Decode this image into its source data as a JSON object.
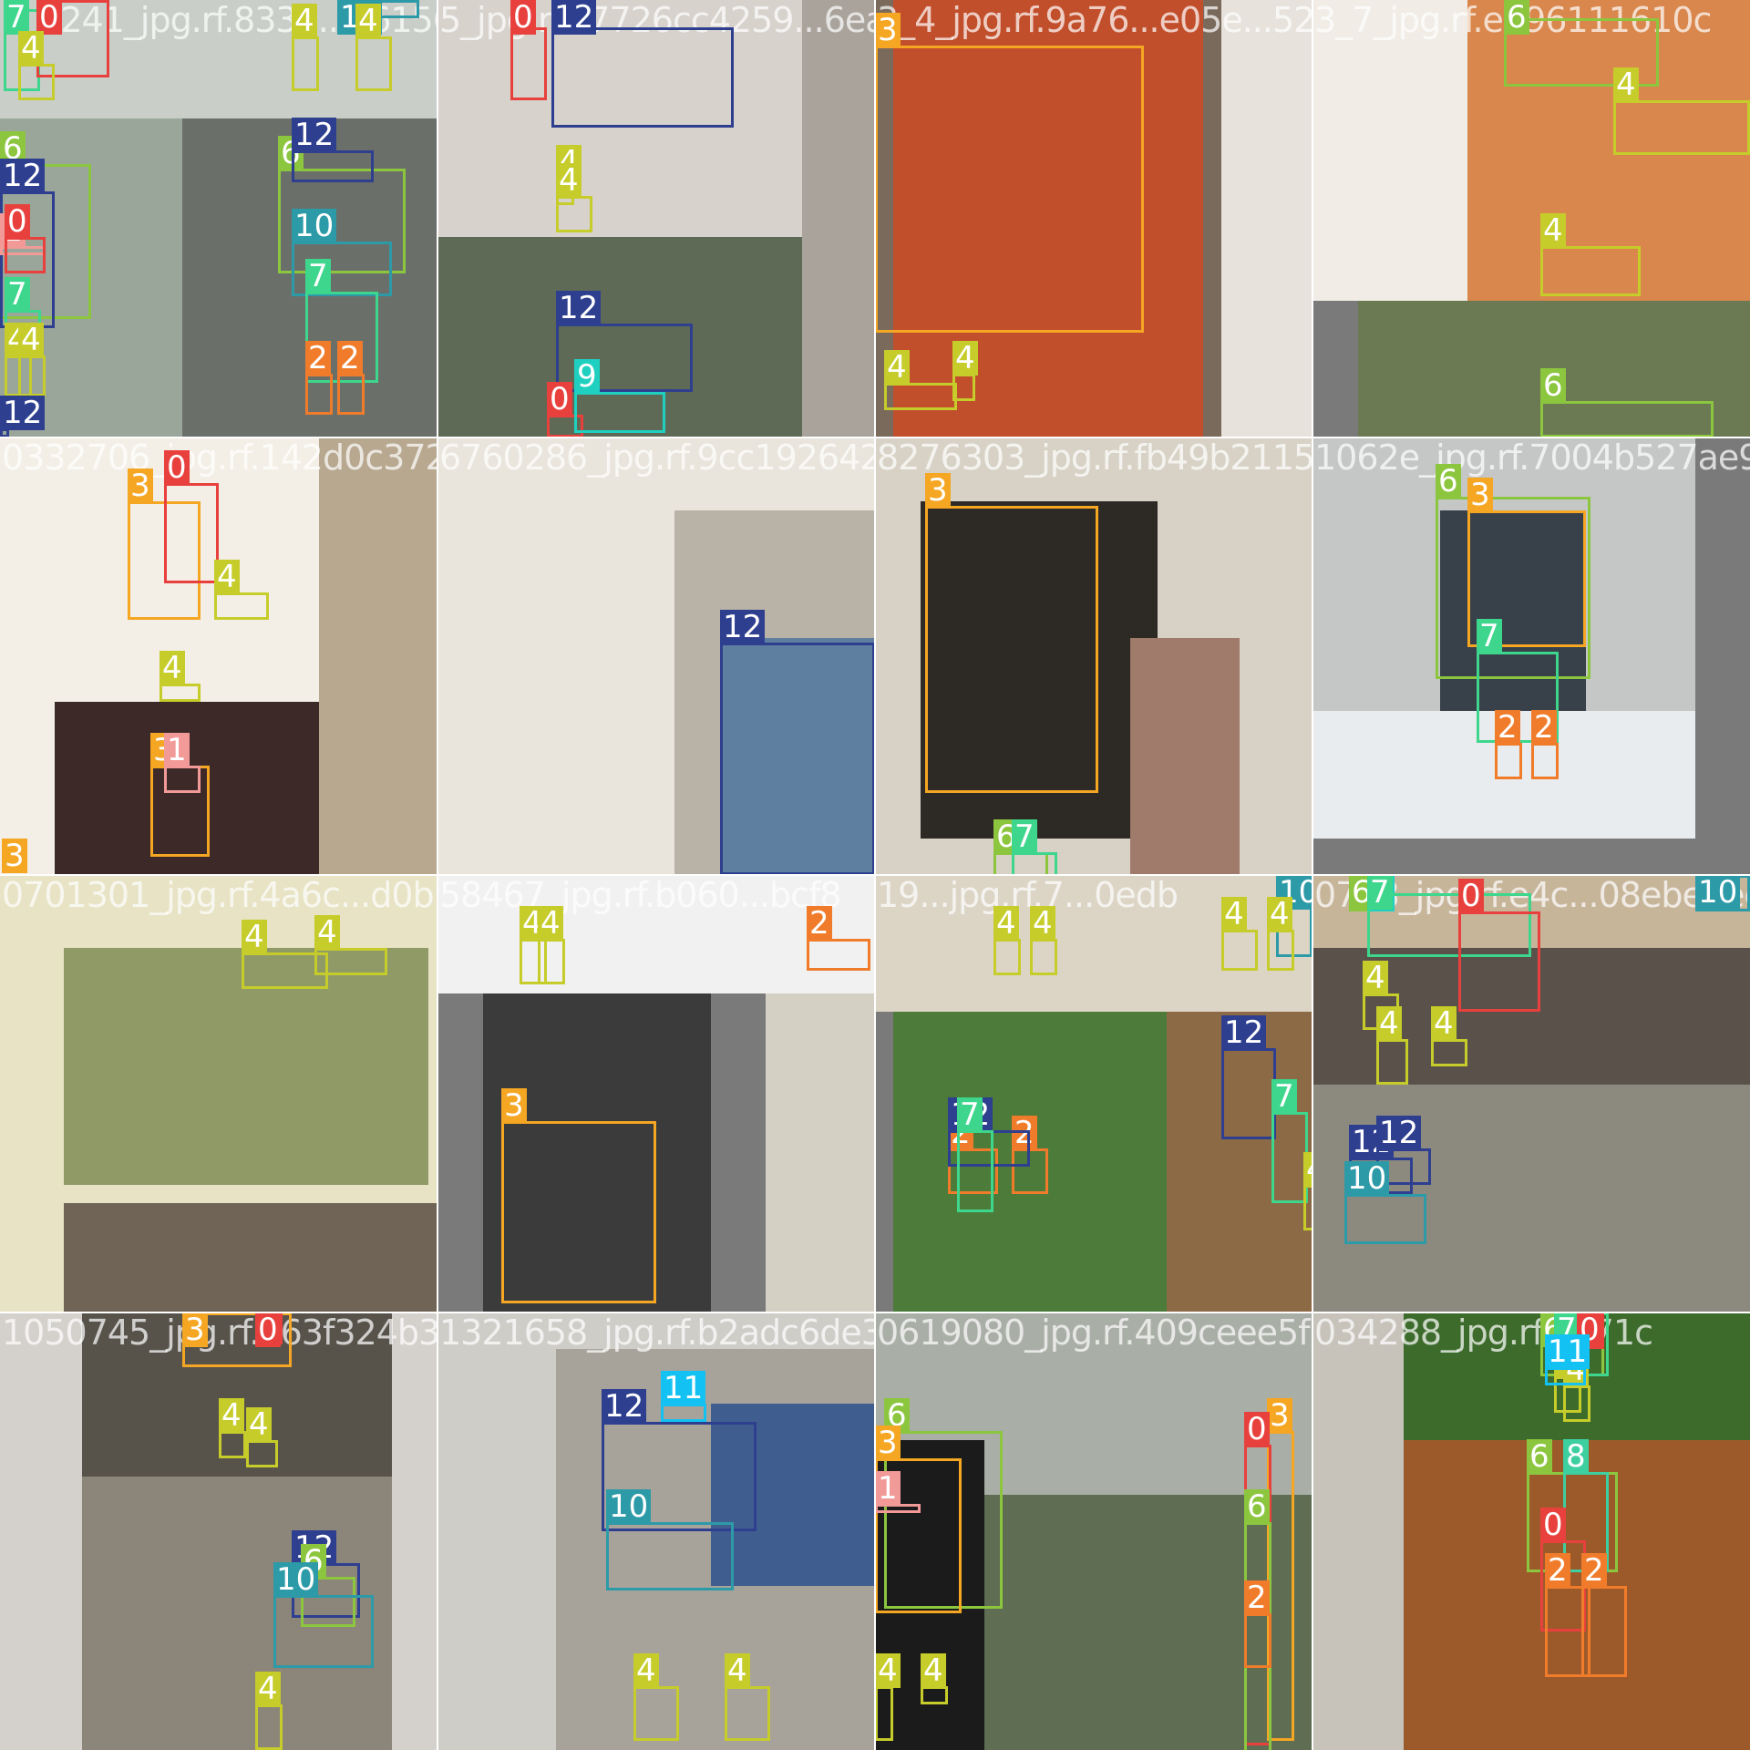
{
  "tiles": [
    {
      "id": "t00",
      "filename": "7_1241_jpg.rf.8332...1615653a",
      "backgrounds": [
        "#c9cfc8",
        "#9aa69a",
        "#6b6f6a"
      ]
    },
    {
      "id": "t01",
      "filename": "5_jpg.rf.c7726cc4259...6ea",
      "backgrounds": [
        "#d7d2cc",
        "#a9a39c",
        "#5e6a55"
      ]
    },
    {
      "id": "t02",
      "filename": "3_4_jpg.rf.9a76...e05e...52763a9c3f7",
      "backgrounds": [
        "#e7e3dc",
        "#c24f2c",
        "#7a6a5c"
      ]
    },
    {
      "id": "t03",
      "filename": "3_7_jpg.rf.e396111610c",
      "backgrounds": [
        "#f1ede6",
        "#d9874c",
        "#6b7a53"
      ]
    },
    {
      "id": "t10",
      "filename": "0332706_jpg.rf.142d0c372d6",
      "backgrounds": [
        "#f3efe7",
        "#b7a88f",
        "#3d2a28"
      ]
    },
    {
      "id": "t11",
      "filename": "6760286_jpg.rf.9cc192642de2",
      "backgrounds": [
        "#e9e4dc",
        "#b9b2a6",
        "#5f7fa0"
      ]
    },
    {
      "id": "t12",
      "filename": "8276303_jpg.rf.fb49b21157c4",
      "backgrounds": [
        "#d8d2c6",
        "#2d2925",
        "#a07a6a"
      ]
    },
    {
      "id": "t13",
      "filename": "1062e_jpg.rf.7004b527ae9",
      "backgrounds": [
        "#c4c7c6",
        "#38404a",
        "#e9ecee"
      ]
    },
    {
      "id": "t20",
      "filename": "0701301_jpg.rf.4a6c...d0b",
      "backgrounds": [
        "#e7e3c4",
        "#8f9a66",
        "#6f6455"
      ]
    },
    {
      "id": "t21",
      "filename": "58467_jpg.rf.b060...bcf8",
      "backgrounds": [
        "#f1f1f1",
        "#3b3b3b",
        "#d5d0c4"
      ]
    },
    {
      "id": "t22",
      "filename": "19...jpg.rf.7...0edb",
      "backgrounds": [
        "#dcd5c6",
        "#4c7b3a",
        "#8b6a45"
      ]
    },
    {
      "id": "t23",
      "filename": "0758_jpg.rf.e4c...08ebe3ee8",
      "backgrounds": [
        "#5a524a",
        "#c7b59a",
        "#8c8a7f"
      ]
    },
    {
      "id": "t30",
      "filename": "1050745_jpg.rf.263f324b3b6",
      "backgrounds": [
        "#d4d1cc",
        "#57534b",
        "#8c8579"
      ]
    },
    {
      "id": "t31",
      "filename": "1321658_jpg.rf.b2adc6de3e",
      "backgrounds": [
        "#cfcdc8",
        "#a7a39a",
        "#3f5d8e"
      ]
    },
    {
      "id": "t32",
      "filename": "0619080_jpg.rf.409ceee5f3b",
      "backgrounds": [
        "#a9aea6",
        "#5f6e52",
        "#1b1b1b"
      ]
    },
    {
      "id": "t33",
      "filename": "034288_jpg.rf.a071c",
      "backgrounds": [
        "#c7c2ba",
        "#9c5a2a",
        "#3d6b2c"
      ]
    }
  ],
  "colors": {
    "0": "#e8413d",
    "1": "#f29a98",
    "2": "#f07c2b",
    "3": "#f5a623",
    "4": "#c6cc2a",
    "6": "#8cc63f",
    "7": "#3dd68c",
    "8": "#3dcfa0",
    "9": "#1fd0c0",
    "10": "#2d9aa8",
    "11": "#13c2f2",
    "12": "#2e3f8f"
  },
  "detections": [
    {
      "tile": "t00",
      "label": "7"
    },
    {
      "tile": "t00",
      "label": "0"
    },
    {
      "tile": "t00",
      "label": "4"
    },
    {
      "tile": "t00",
      "label": "10"
    },
    {
      "tile": "t00",
      "label": "4"
    },
    {
      "tile": "t00",
      "label": "4"
    },
    {
      "tile": "t00",
      "label": "6"
    },
    {
      "tile": "t00",
      "label": "12"
    },
    {
      "tile": "t00",
      "label": "6"
    },
    {
      "tile": "t00",
      "label": "12"
    },
    {
      "tile": "t00",
      "label": "1"
    },
    {
      "tile": "t00",
      "label": "0"
    },
    {
      "tile": "t00",
      "label": "10"
    },
    {
      "tile": "t00",
      "label": "7"
    },
    {
      "tile": "t00",
      "label": "7"
    },
    {
      "tile": "t00",
      "label": "4"
    },
    {
      "tile": "t00",
      "label": "4"
    },
    {
      "tile": "t00",
      "label": "2"
    },
    {
      "tile": "t00",
      "label": "2"
    },
    {
      "tile": "t00",
      "label": "12"
    },
    {
      "tile": "t01",
      "label": "0"
    },
    {
      "tile": "t01",
      "label": "12"
    },
    {
      "tile": "t01",
      "label": "4"
    },
    {
      "tile": "t01",
      "label": "4"
    },
    {
      "tile": "t01",
      "label": "12"
    },
    {
      "tile": "t01",
      "label": "0"
    },
    {
      "tile": "t01",
      "label": "9"
    },
    {
      "tile": "t02",
      "label": "3"
    },
    {
      "tile": "t02",
      "label": "4"
    },
    {
      "tile": "t02",
      "label": "4"
    },
    {
      "tile": "t03",
      "label": "6"
    },
    {
      "tile": "t03",
      "label": "4"
    },
    {
      "tile": "t03",
      "label": "4"
    },
    {
      "tile": "t03",
      "label": "6"
    },
    {
      "tile": "t10",
      "label": "3"
    },
    {
      "tile": "t10",
      "label": "0"
    },
    {
      "tile": "t10",
      "label": "4"
    },
    {
      "tile": "t10",
      "label": "4"
    },
    {
      "tile": "t10",
      "label": "3"
    },
    {
      "tile": "t10",
      "label": "1"
    },
    {
      "tile": "t10",
      "label": "3"
    },
    {
      "tile": "t11",
      "label": "12"
    },
    {
      "tile": "t12",
      "label": "3"
    },
    {
      "tile": "t12",
      "label": "6"
    },
    {
      "tile": "t12",
      "label": "7"
    },
    {
      "tile": "t13",
      "label": "6"
    },
    {
      "tile": "t13",
      "label": "3"
    },
    {
      "tile": "t13",
      "label": "7"
    },
    {
      "tile": "t13",
      "label": "2"
    },
    {
      "tile": "t13",
      "label": "2"
    },
    {
      "tile": "t20",
      "label": "4"
    },
    {
      "tile": "t20",
      "label": "4"
    },
    {
      "tile": "t21",
      "label": "4"
    },
    {
      "tile": "t21",
      "label": "4"
    },
    {
      "tile": "t21",
      "label": "2"
    },
    {
      "tile": "t21",
      "label": "3"
    },
    {
      "tile": "t22",
      "label": "4"
    },
    {
      "tile": "t22",
      "label": "4"
    },
    {
      "tile": "t22",
      "label": "10"
    },
    {
      "tile": "t22",
      "label": "4"
    },
    {
      "tile": "t22",
      "label": "4"
    },
    {
      "tile": "t22",
      "label": "12"
    },
    {
      "tile": "t22",
      "label": "7"
    },
    {
      "tile": "t22",
      "label": "2"
    },
    {
      "tile": "t22",
      "label": "2"
    },
    {
      "tile": "t22",
      "label": "12"
    },
    {
      "tile": "t22",
      "label": "7"
    },
    {
      "tile": "t22",
      "label": "4"
    },
    {
      "tile": "t23",
      "label": "6"
    },
    {
      "tile": "t23",
      "label": "9"
    },
    {
      "tile": "t23",
      "label": "7"
    },
    {
      "tile": "t23",
      "label": "0"
    },
    {
      "tile": "t23",
      "label": "10"
    },
    {
      "tile": "t23",
      "label": "4"
    },
    {
      "tile": "t23",
      "label": "4"
    },
    {
      "tile": "t23",
      "label": "4"
    },
    {
      "tile": "t23",
      "label": "12"
    },
    {
      "tile": "t23",
      "label": "12"
    },
    {
      "tile": "t23",
      "label": "10"
    },
    {
      "tile": "t30",
      "label": "3"
    },
    {
      "tile": "t30",
      "label": "0"
    },
    {
      "tile": "t30",
      "label": "4"
    },
    {
      "tile": "t30",
      "label": "4"
    },
    {
      "tile": "t30",
      "label": "12"
    },
    {
      "tile": "t30",
      "label": "6"
    },
    {
      "tile": "t30",
      "label": "10"
    },
    {
      "tile": "t30",
      "label": "4"
    },
    {
      "tile": "t31",
      "label": "12"
    },
    {
      "tile": "t31",
      "label": "11"
    },
    {
      "tile": "t31",
      "label": "10"
    },
    {
      "tile": "t31",
      "label": "4"
    },
    {
      "tile": "t31",
      "label": "4"
    },
    {
      "tile": "t32",
      "label": "6"
    },
    {
      "tile": "t32",
      "label": "3"
    },
    {
      "tile": "t32",
      "label": "1"
    },
    {
      "tile": "t32",
      "label": "4"
    },
    {
      "tile": "t32",
      "label": "4"
    },
    {
      "tile": "t32",
      "label": "3"
    },
    {
      "tile": "t32",
      "label": "0"
    },
    {
      "tile": "t32",
      "label": "6"
    },
    {
      "tile": "t32",
      "label": "2"
    },
    {
      "tile": "t33",
      "label": "6"
    },
    {
      "tile": "t33",
      "label": "7"
    },
    {
      "tile": "t33",
      "label": "0"
    },
    {
      "tile": "t33",
      "label": "4"
    },
    {
      "tile": "t33",
      "label": "4"
    },
    {
      "tile": "t33",
      "label": "11"
    },
    {
      "tile": "t33",
      "label": "6"
    },
    {
      "tile": "t33",
      "label": "8"
    },
    {
      "tile": "t33",
      "label": "0"
    },
    {
      "tile": "t33",
      "label": "2"
    },
    {
      "tile": "t33",
      "label": "2"
    }
  ]
}
